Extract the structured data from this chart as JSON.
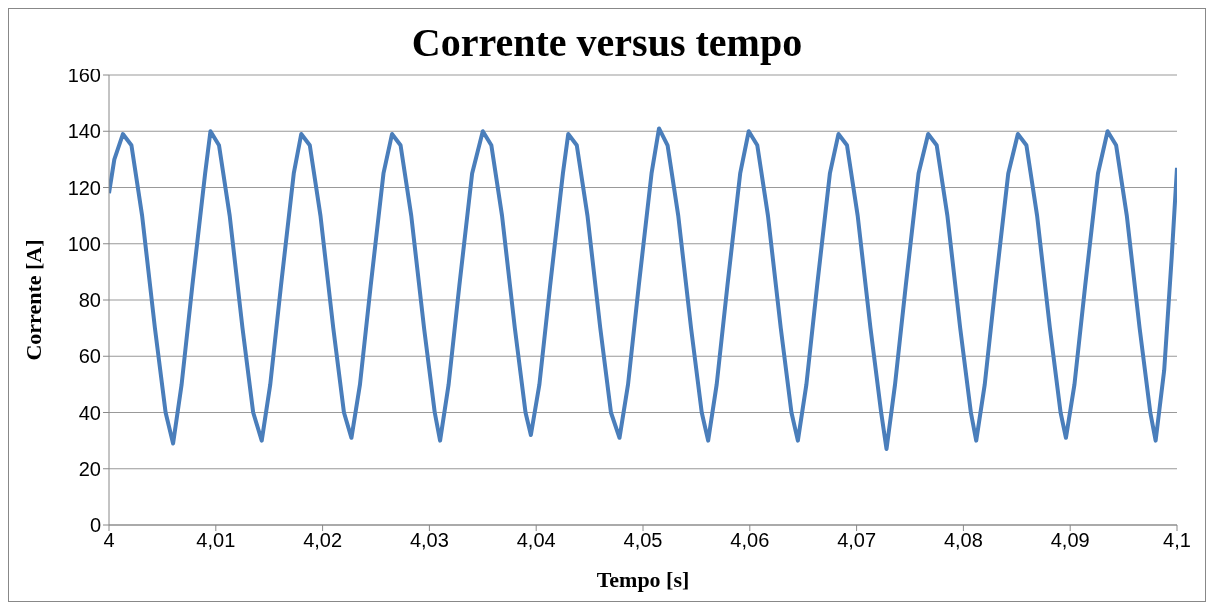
{
  "chart_data": {
    "type": "line",
    "title": "Corrente versus tempo",
    "xlabel": "Tempo [s]",
    "ylabel": "Corrente [A]",
    "x": [
      4.0,
      4.0005,
      4.0013,
      4.0021,
      4.0031,
      4.0043,
      4.0053,
      4.006,
      4.0068,
      4.0078,
      4.009,
      4.0095,
      4.0103,
      4.0113,
      4.0125,
      4.0135,
      4.0143,
      4.0151,
      4.0161,
      4.0173,
      4.018,
      4.0188,
      4.0198,
      4.021,
      4.022,
      4.0227,
      4.0235,
      4.0245,
      4.0257,
      4.0265,
      4.0273,
      4.0283,
      4.0295,
      4.0305,
      4.031,
      4.0318,
      4.0328,
      4.034,
      4.035,
      4.0358,
      4.0368,
      4.038,
      4.039,
      4.0395,
      4.0403,
      4.0413,
      4.0425,
      4.043,
      4.0438,
      4.0448,
      4.046,
      4.047,
      4.0478,
      4.0486,
      4.0496,
      4.0508,
      4.0515,
      4.0523,
      4.0533,
      4.0545,
      4.0555,
      4.0561,
      4.0569,
      4.0579,
      4.0591,
      4.0599,
      4.0607,
      4.0617,
      4.0629,
      4.0639,
      4.0645,
      4.0653,
      4.0663,
      4.0675,
      4.0683,
      4.0691,
      4.0701,
      4.0713,
      4.0723,
      4.0728,
      4.0736,
      4.0746,
      4.0758,
      4.0767,
      4.0775,
      4.0785,
      4.0797,
      4.0807,
      4.0812,
      4.082,
      4.083,
      4.0842,
      4.0851,
      4.0859,
      4.0869,
      4.0881,
      4.0891,
      4.0896,
      4.0904,
      4.0914,
      4.0926,
      4.0935,
      4.0943,
      4.0953,
      4.0965,
      4.0975,
      4.098,
      4.0988,
      4.0995,
      4.1
    ],
    "series": [
      {
        "color": "#4a7ebb",
        "values": [
          118,
          130,
          139,
          135,
          110,
          70,
          40,
          29,
          50,
          85,
          125,
          140,
          135,
          110,
          70,
          40,
          30,
          50,
          85,
          125,
          139,
          135,
          110,
          70,
          40,
          31,
          50,
          85,
          125,
          139,
          135,
          110,
          70,
          40,
          30,
          50,
          85,
          125,
          140,
          135,
          110,
          70,
          40,
          32,
          50,
          85,
          125,
          139,
          135,
          110,
          70,
          40,
          31,
          50,
          85,
          125,
          141,
          135,
          110,
          70,
          40,
          30,
          50,
          85,
          125,
          140,
          135,
          110,
          70,
          40,
          30,
          50,
          85,
          125,
          139,
          135,
          110,
          70,
          40,
          27,
          50,
          85,
          125,
          139,
          135,
          110,
          70,
          40,
          30,
          50,
          85,
          125,
          139,
          135,
          110,
          70,
          40,
          31,
          50,
          85,
          125,
          140,
          135,
          110,
          70,
          40,
          30,
          55,
          95,
          127
        ]
      }
    ],
    "xlim": [
      4.0,
      4.1
    ],
    "xticks": [
      4,
      {
        "value": 4.01,
        "label": "4,01"
      },
      {
        "value": 4.02,
        "label": "4,02"
      },
      {
        "value": 4.03,
        "label": "4,03"
      },
      {
        "value": 4.04,
        "label": "4,04"
      },
      {
        "value": 4.05,
        "label": "4,05"
      },
      {
        "value": 4.06,
        "label": "4,06"
      },
      {
        "value": 4.07,
        "label": "4,07"
      },
      {
        "value": 4.08,
        "label": "4,08"
      },
      {
        "value": 4.09,
        "label": "4,09"
      },
      {
        "value": 4.1,
        "label": "4,1"
      }
    ],
    "ylim": [
      0,
      160
    ],
    "yticks": [
      0,
      20,
      40,
      60,
      80,
      100,
      120,
      140,
      160
    ],
    "grid": "y",
    "legend": false,
    "marker": "none",
    "line_style": "solid"
  }
}
